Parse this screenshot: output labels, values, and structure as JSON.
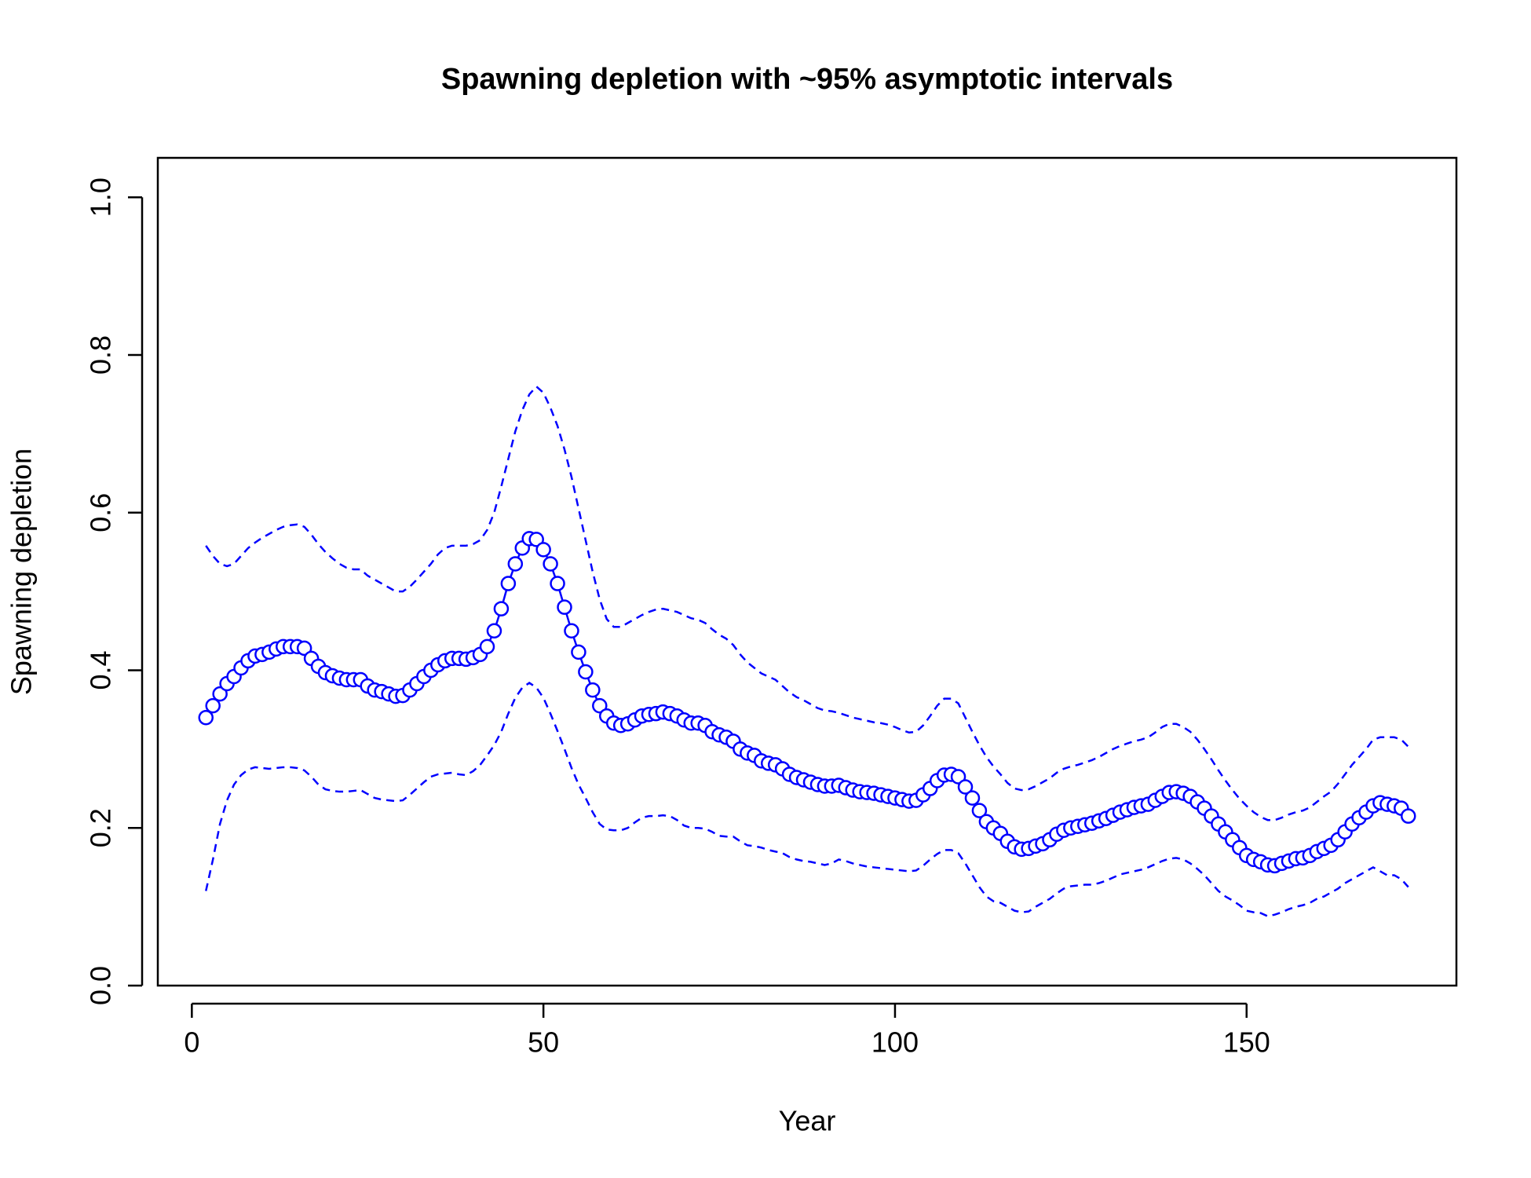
{
  "chart_data": {
    "type": "line",
    "title": "Spawning depletion with ~95% asymptotic intervals",
    "xlabel": "Year",
    "ylabel": "Spawning depletion",
    "x": [
      2,
      3,
      4,
      5,
      6,
      7,
      8,
      9,
      10,
      11,
      12,
      13,
      14,
      15,
      16,
      17,
      18,
      19,
      20,
      21,
      22,
      23,
      24,
      25,
      26,
      27,
      28,
      29,
      30,
      31,
      32,
      33,
      34,
      35,
      36,
      37,
      38,
      39,
      40,
      41,
      42,
      43,
      44,
      45,
      46,
      47,
      48,
      49,
      50,
      51,
      52,
      53,
      54,
      55,
      56,
      57,
      58,
      59,
      60,
      61,
      62,
      63,
      64,
      65,
      66,
      67,
      68,
      69,
      70,
      71,
      72,
      73,
      74,
      75,
      76,
      77,
      78,
      79,
      80,
      81,
      82,
      83,
      84,
      85,
      86,
      87,
      88,
      89,
      90,
      91,
      92,
      93,
      94,
      95,
      96,
      97,
      98,
      99,
      100,
      101,
      102,
      103,
      104,
      105,
      106,
      107,
      108,
      109,
      110,
      111,
      112,
      113,
      114,
      115,
      116,
      117,
      118,
      119,
      120,
      121,
      122,
      123,
      124,
      125,
      126,
      127,
      128,
      129,
      130,
      131,
      132,
      133,
      134,
      135,
      136,
      137,
      138,
      139,
      140,
      141,
      142,
      143,
      144,
      145,
      146,
      147,
      148,
      149,
      150,
      151,
      152,
      153,
      154,
      155,
      156,
      157,
      158,
      159,
      160,
      161,
      162,
      163,
      164,
      165,
      166,
      167,
      168,
      169,
      170,
      171,
      172,
      173
    ],
    "series": [
      {
        "color": "#0000ff",
        "line_style": "solid",
        "markers": true,
        "values": [
          0.34,
          0.355,
          0.37,
          0.383,
          0.392,
          0.403,
          0.412,
          0.418,
          0.42,
          0.423,
          0.427,
          0.43,
          0.43,
          0.43,
          0.428,
          0.415,
          0.405,
          0.397,
          0.393,
          0.39,
          0.388,
          0.388,
          0.388,
          0.38,
          0.375,
          0.373,
          0.37,
          0.367,
          0.368,
          0.375,
          0.383,
          0.392,
          0.4,
          0.407,
          0.412,
          0.415,
          0.415,
          0.414,
          0.416,
          0.42,
          0.43,
          0.45,
          0.478,
          0.51,
          0.535,
          0.555,
          0.567,
          0.566,
          0.553,
          0.535,
          0.51,
          0.48,
          0.45,
          0.423,
          0.398,
          0.375,
          0.355,
          0.342,
          0.333,
          0.33,
          0.332,
          0.337,
          0.342,
          0.344,
          0.345,
          0.347,
          0.345,
          0.342,
          0.337,
          0.333,
          0.333,
          0.33,
          0.322,
          0.318,
          0.315,
          0.31,
          0.3,
          0.295,
          0.292,
          0.285,
          0.282,
          0.28,
          0.275,
          0.268,
          0.264,
          0.261,
          0.258,
          0.255,
          0.253,
          0.253,
          0.254,
          0.251,
          0.248,
          0.246,
          0.245,
          0.244,
          0.242,
          0.24,
          0.238,
          0.236,
          0.234,
          0.235,
          0.242,
          0.25,
          0.26,
          0.267,
          0.268,
          0.265,
          0.252,
          0.238,
          0.222,
          0.208,
          0.2,
          0.193,
          0.183,
          0.176,
          0.173,
          0.174,
          0.177,
          0.18,
          0.185,
          0.192,
          0.197,
          0.2,
          0.202,
          0.204,
          0.206,
          0.209,
          0.212,
          0.216,
          0.22,
          0.223,
          0.226,
          0.228,
          0.23,
          0.235,
          0.24,
          0.245,
          0.246,
          0.244,
          0.24,
          0.233,
          0.225,
          0.215,
          0.205,
          0.195,
          0.185,
          0.175,
          0.165,
          0.16,
          0.157,
          0.153,
          0.152,
          0.155,
          0.158,
          0.161,
          0.162,
          0.165,
          0.17,
          0.174,
          0.178,
          0.185,
          0.195,
          0.205,
          0.213,
          0.22,
          0.228,
          0.232,
          0.23,
          0.228,
          0.225,
          0.215
        ]
      },
      {
        "color": "#0000ff",
        "line_style": "dashed",
        "markers": false,
        "values": [
          0.558,
          0.545,
          0.535,
          0.532,
          0.535,
          0.545,
          0.555,
          0.562,
          0.568,
          0.573,
          0.578,
          0.582,
          0.584,
          0.585,
          0.582,
          0.572,
          0.56,
          0.55,
          0.542,
          0.535,
          0.53,
          0.528,
          0.528,
          0.52,
          0.515,
          0.51,
          0.505,
          0.5,
          0.5,
          0.506,
          0.515,
          0.525,
          0.535,
          0.547,
          0.555,
          0.558,
          0.558,
          0.558,
          0.56,
          0.565,
          0.578,
          0.6,
          0.633,
          0.668,
          0.703,
          0.73,
          0.75,
          0.76,
          0.752,
          0.733,
          0.71,
          0.68,
          0.645,
          0.605,
          0.565,
          0.525,
          0.49,
          0.465,
          0.455,
          0.455,
          0.46,
          0.465,
          0.47,
          0.474,
          0.477,
          0.478,
          0.476,
          0.474,
          0.47,
          0.466,
          0.464,
          0.46,
          0.452,
          0.445,
          0.44,
          0.432,
          0.42,
          0.41,
          0.403,
          0.396,
          0.392,
          0.388,
          0.38,
          0.372,
          0.366,
          0.362,
          0.357,
          0.352,
          0.349,
          0.348,
          0.346,
          0.343,
          0.34,
          0.338,
          0.336,
          0.334,
          0.333,
          0.331,
          0.328,
          0.324,
          0.321,
          0.322,
          0.33,
          0.342,
          0.355,
          0.364,
          0.364,
          0.358,
          0.34,
          0.322,
          0.305,
          0.29,
          0.278,
          0.268,
          0.257,
          0.25,
          0.248,
          0.249,
          0.253,
          0.258,
          0.263,
          0.27,
          0.275,
          0.278,
          0.28,
          0.283,
          0.286,
          0.29,
          0.295,
          0.3,
          0.304,
          0.307,
          0.31,
          0.312,
          0.315,
          0.321,
          0.328,
          0.332,
          0.332,
          0.328,
          0.322,
          0.312,
          0.3,
          0.287,
          0.273,
          0.26,
          0.248,
          0.237,
          0.228,
          0.22,
          0.214,
          0.21,
          0.21,
          0.213,
          0.217,
          0.22,
          0.222,
          0.226,
          0.233,
          0.24,
          0.246,
          0.256,
          0.268,
          0.28,
          0.29,
          0.3,
          0.312,
          0.315,
          0.315,
          0.315,
          0.312,
          0.303
        ]
      },
      {
        "color": "#0000ff",
        "line_style": "dashed",
        "markers": false,
        "values": [
          0.12,
          0.16,
          0.205,
          0.235,
          0.255,
          0.267,
          0.274,
          0.277,
          0.276,
          0.275,
          0.276,
          0.277,
          0.277,
          0.276,
          0.273,
          0.265,
          0.255,
          0.249,
          0.247,
          0.246,
          0.246,
          0.247,
          0.248,
          0.243,
          0.238,
          0.236,
          0.235,
          0.234,
          0.235,
          0.242,
          0.25,
          0.258,
          0.265,
          0.268,
          0.269,
          0.27,
          0.268,
          0.267,
          0.272,
          0.28,
          0.292,
          0.305,
          0.322,
          0.345,
          0.365,
          0.378,
          0.384,
          0.378,
          0.365,
          0.345,
          0.323,
          0.3,
          0.276,
          0.255,
          0.238,
          0.22,
          0.205,
          0.198,
          0.197,
          0.197,
          0.2,
          0.207,
          0.213,
          0.215,
          0.215,
          0.216,
          0.215,
          0.21,
          0.203,
          0.2,
          0.2,
          0.199,
          0.195,
          0.19,
          0.189,
          0.189,
          0.183,
          0.178,
          0.177,
          0.175,
          0.172,
          0.17,
          0.168,
          0.163,
          0.16,
          0.158,
          0.157,
          0.155,
          0.153,
          0.155,
          0.16,
          0.158,
          0.155,
          0.153,
          0.151,
          0.15,
          0.149,
          0.148,
          0.147,
          0.146,
          0.145,
          0.146,
          0.152,
          0.16,
          0.167,
          0.172,
          0.172,
          0.168,
          0.155,
          0.14,
          0.125,
          0.113,
          0.107,
          0.105,
          0.1,
          0.095,
          0.093,
          0.094,
          0.1,
          0.105,
          0.11,
          0.117,
          0.123,
          0.126,
          0.127,
          0.128,
          0.128,
          0.13,
          0.133,
          0.137,
          0.141,
          0.143,
          0.145,
          0.147,
          0.15,
          0.154,
          0.158,
          0.161,
          0.162,
          0.16,
          0.155,
          0.148,
          0.14,
          0.13,
          0.12,
          0.113,
          0.108,
          0.102,
          0.095,
          0.093,
          0.092,
          0.088,
          0.09,
          0.093,
          0.097,
          0.1,
          0.102,
          0.105,
          0.11,
          0.113,
          0.118,
          0.123,
          0.13,
          0.135,
          0.14,
          0.145,
          0.15,
          0.145,
          0.14,
          0.14,
          0.135,
          0.125
        ]
      }
    ],
    "xlim": [
      -4.84,
      179.84
    ],
    "xticks": [
      0,
      50,
      100,
      150
    ],
    "ylim": [
      0,
      1.05
    ],
    "yticks": [
      {
        "value": 0,
        "label": "0.0"
      },
      0.2,
      0.4,
      0.6,
      0.8,
      {
        "value": 1,
        "label": "1.0"
      }
    ]
  }
}
